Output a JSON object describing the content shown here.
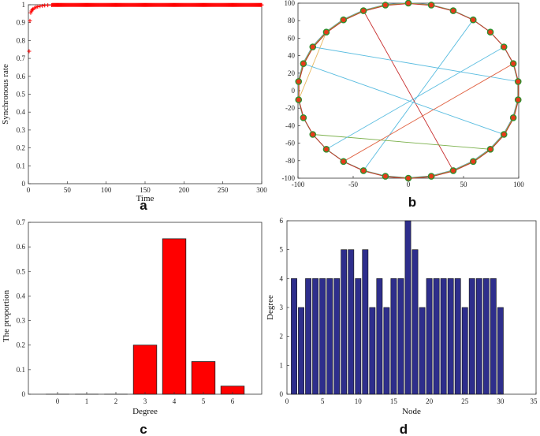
{
  "chart_data": [
    {
      "panel": "a",
      "type": "scatter",
      "xlabel": "Time",
      "ylabel": "Synchronous rate",
      "xlim": [
        0,
        300
      ],
      "ylim": [
        0,
        1
      ],
      "xticks": [
        0,
        50,
        100,
        150,
        200,
        250,
        300
      ],
      "yticks": [
        0,
        0.1,
        0.2,
        0.3,
        0.4,
        0.5,
        0.6,
        0.7,
        0.8,
        0.9,
        1
      ],
      "marker_color": "#ff0000",
      "x": [
        1,
        2,
        3,
        4,
        5,
        6,
        8,
        10,
        12,
        15,
        18,
        21,
        25,
        30
      ],
      "y": [
        0.74,
        0.91,
        0.955,
        0.965,
        0.972,
        0.977,
        0.982,
        0.986,
        0.989,
        0.992,
        0.994,
        0.996,
        0.997,
        0.998
      ],
      "plateau": {
        "x_from": 31,
        "x_to": 300,
        "y": 0.999
      }
    },
    {
      "panel": "b",
      "type": "network",
      "xlim": [
        -100,
        100
      ],
      "ylim": [
        -100,
        100
      ],
      "xticks": [
        -100,
        -50,
        0,
        50,
        100
      ],
      "yticks": [
        -100,
        -80,
        -60,
        -40,
        -20,
        0,
        20,
        40,
        60,
        80,
        100
      ],
      "node_count": 30,
      "node_fill": "#e83a1a",
      "node_stroke": "#2f8f2f",
      "ring_colors": [
        "#2d8fc8",
        "#e8a040",
        "#5aa832",
        "#c83030"
      ],
      "chords": [
        {
          "from": 17,
          "to": 3,
          "color": "#5bbde0"
        },
        {
          "from": 28,
          "to": 13,
          "color": "#c83030"
        },
        {
          "from": 22,
          "to": 26,
          "color": "#e8b860"
        },
        {
          "from": 25,
          "to": 7,
          "color": "#5bbde0"
        },
        {
          "from": 24,
          "to": 10,
          "color": "#5bbde0"
        },
        {
          "from": 11,
          "to": 20,
          "color": "#7ab04a"
        },
        {
          "from": 18,
          "to": 6,
          "color": "#e06040"
        },
        {
          "from": 19,
          "to": 5,
          "color": "#5bbde0"
        }
      ]
    },
    {
      "panel": "c",
      "type": "bar",
      "xlabel": "Degree",
      "ylabel": "The proportion",
      "categories": [
        0,
        1,
        2,
        3,
        4,
        5,
        6
      ],
      "values": [
        0,
        0,
        0,
        0.2,
        0.633,
        0.133,
        0.033
      ],
      "xlim": [
        -1,
        7
      ],
      "ylim": [
        0,
        0.7
      ],
      "yticks": [
        0,
        0.1,
        0.2,
        0.3,
        0.4,
        0.5,
        0.6,
        0.7
      ],
      "bar_color": "#ff0000"
    },
    {
      "panel": "d",
      "type": "bar",
      "xlabel": "Node",
      "ylabel": "Degree",
      "categories": [
        1,
        2,
        3,
        4,
        5,
        6,
        7,
        8,
        9,
        10,
        11,
        12,
        13,
        14,
        15,
        16,
        17,
        18,
        19,
        20,
        21,
        22,
        23,
        24,
        25,
        26,
        27,
        28,
        29,
        30
      ],
      "values": [
        4,
        3,
        4,
        4,
        4,
        4,
        4,
        5,
        5,
        4,
        5,
        3,
        4,
        3,
        4,
        4,
        6,
        5,
        3,
        4,
        4,
        4,
        4,
        4,
        3,
        4,
        4,
        4,
        4,
        3
      ],
      "xlim": [
        0,
        35
      ],
      "ylim": [
        0,
        6
      ],
      "xticks": [
        0,
        5,
        10,
        15,
        20,
        25,
        30,
        35
      ],
      "yticks": [
        0,
        1,
        2,
        3,
        4,
        5,
        6
      ],
      "bar_color": "#2e2e8c"
    }
  ],
  "labels": {
    "a": "a",
    "b": "b",
    "c": "c",
    "d": "d"
  }
}
